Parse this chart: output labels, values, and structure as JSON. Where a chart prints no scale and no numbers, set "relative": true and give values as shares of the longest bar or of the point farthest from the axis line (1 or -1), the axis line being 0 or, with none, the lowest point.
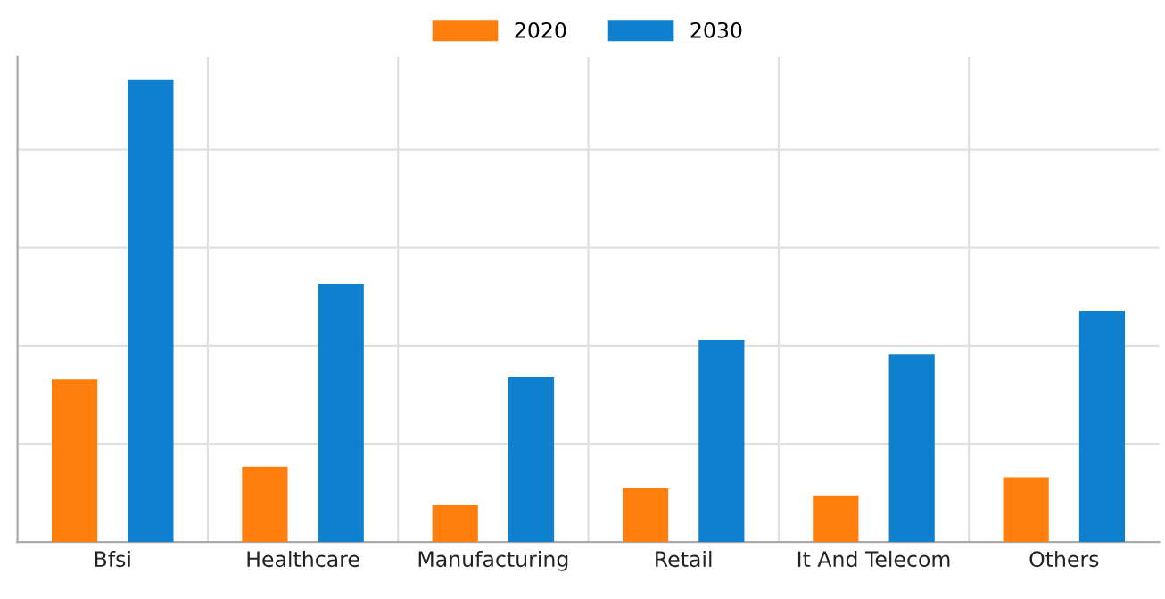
{
  "chart_data": {
    "type": "bar",
    "relative": true,
    "categories": [
      "Bfsi",
      "Healthcare",
      "Manufacturing",
      "Retail",
      "It And Telecom",
      "Others"
    ],
    "series": [
      {
        "name": "2020",
        "color": "#ff7f0e",
        "values": [
          0.353,
          0.163,
          0.081,
          0.116,
          0.101,
          0.14
        ]
      },
      {
        "name": "2030",
        "color": "#0e80cd",
        "values": [
          1,
          0.558,
          0.357,
          0.438,
          0.407,
          0.5
        ]
      }
    ],
    "grid": true,
    "legend": "top"
  }
}
